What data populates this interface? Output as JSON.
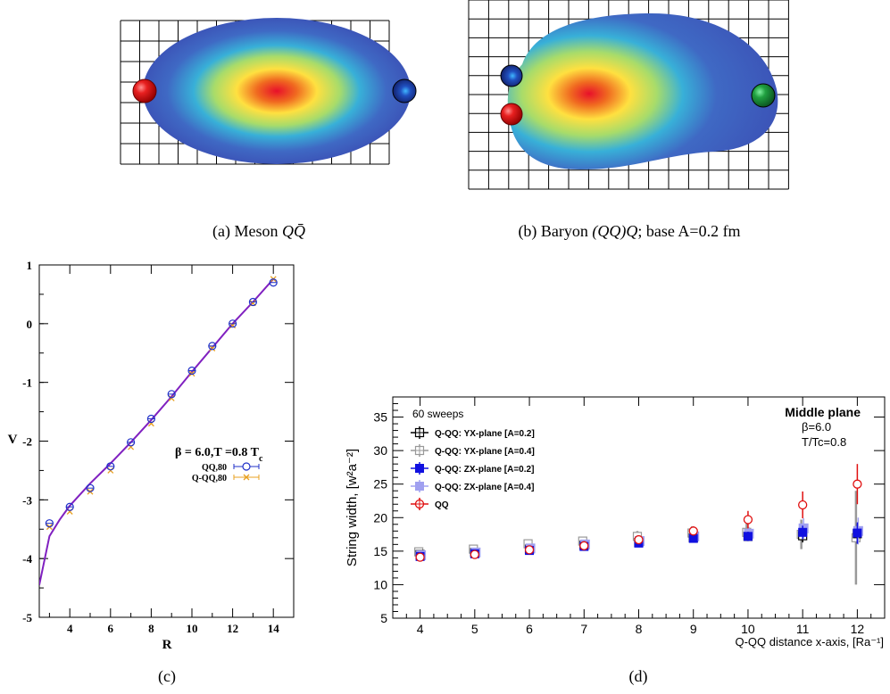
{
  "panels": {
    "a": {
      "caption_prefix": "(a)  Meson ",
      "caption_math": "QQ̄",
      "quarks": [
        {
          "color": "#e01010"
        },
        {
          "color": "#1a3fa0"
        }
      ]
    },
    "b": {
      "caption_prefix": "(b)  Baryon ",
      "caption_math": "(QQ)Q",
      "caption_suffix": "; base A=0.2 fm",
      "quarks": [
        {
          "color": "#1a3fa0"
        },
        {
          "color": "#e01010"
        },
        {
          "color": "#1a9040"
        }
      ]
    },
    "c": {
      "caption": "(c)"
    },
    "d": {
      "caption": "(d)"
    }
  },
  "chart_data": [
    {
      "type": "scatter",
      "panel": "c",
      "xlabel": "R",
      "ylabel": "V",
      "xlim": [
        2.5,
        15
      ],
      "ylim": [
        -5,
        1
      ],
      "x_ticks": [
        4,
        6,
        8,
        10,
        12,
        14
      ],
      "y_ticks": [
        1,
        0,
        -1,
        -2,
        -3,
        -4,
        -5
      ],
      "annotation": "β = 6.0,T =0.8 T",
      "annotation_sub": "c",
      "legend_position": "right-middle",
      "series": [
        {
          "name": "QQ,80",
          "marker": "circle",
          "color": "#2030c8",
          "x": [
            3,
            4,
            5,
            6,
            7,
            8,
            9,
            10,
            11,
            12,
            13,
            14
          ],
          "y": [
            -3.4,
            -3.12,
            -2.8,
            -2.43,
            -2.02,
            -1.62,
            -1.2,
            -0.8,
            -0.38,
            0.0,
            0.37,
            0.7
          ]
        },
        {
          "name": "Q-QQ,80",
          "marker": "cross",
          "color": "#e8a020",
          "x": [
            3,
            4,
            5,
            6,
            7,
            8,
            9,
            10,
            11,
            12,
            13,
            14
          ],
          "y": [
            -3.46,
            -3.2,
            -2.86,
            -2.5,
            -2.1,
            -1.7,
            -1.27,
            -0.85,
            -0.42,
            -0.03,
            0.35,
            0.76
          ]
        },
        {
          "name": "",
          "type": "line",
          "color": "#8020c0",
          "x": [
            2.5,
            3,
            3.5,
            4,
            5,
            6,
            7,
            8,
            9,
            10,
            11,
            12,
            13,
            14
          ],
          "y": [
            -4.45,
            -3.62,
            -3.34,
            -3.1,
            -2.72,
            -2.38,
            -2.02,
            -1.64,
            -1.24,
            -0.82,
            -0.41,
            0.0,
            0.37,
            0.76
          ]
        }
      ]
    },
    {
      "type": "scatter",
      "panel": "d",
      "xlabel": "Q-QQ distance x-axis, [Ra⁻¹]",
      "ylabel": "String width, [w²a⁻²]",
      "xlim": [
        3.5,
        12.5
      ],
      "ylim": [
        5,
        38
      ],
      "x_ticks": [
        4,
        5,
        6,
        7,
        8,
        9,
        10,
        11,
        12
      ],
      "y_ticks": [
        5,
        10,
        15,
        20,
        25,
        30,
        35
      ],
      "annotations": [
        "60 sweeps",
        "Middle plane",
        "β=6.0",
        "T/Tc=0.8"
      ],
      "legend_position": "top-left",
      "series": [
        {
          "name": "Q-QQ: YX-plane [A=0.2]",
          "marker": "open-square",
          "color": "#000000",
          "x": [
            4,
            5,
            6,
            7,
            8,
            9,
            10,
            11,
            12
          ],
          "y": [
            14.5,
            14.8,
            15.3,
            15.9,
            16.3,
            17.0,
            17.2,
            17.3,
            17.6
          ],
          "err": [
            0.3,
            0.3,
            0.4,
            0.4,
            0.5,
            0.6,
            0.7,
            1.0,
            1.5
          ]
        },
        {
          "name": "Q-QQ: YX-plane [A=0.4]",
          "marker": "open-square",
          "color": "#999999",
          "x": [
            4,
            5,
            6,
            7,
            8,
            9,
            10,
            11,
            12
          ],
          "y": [
            14.9,
            15.3,
            16.1,
            16.5,
            17.2,
            17.7,
            17.8,
            17.5,
            17.0
          ],
          "err": [
            0.3,
            0.4,
            0.5,
            0.6,
            0.8,
            1.0,
            1.3,
            2.2,
            7.0
          ]
        },
        {
          "name": "Q-QQ: ZX-plane [A=0.2]",
          "marker": "filled-square",
          "color": "#1010e0",
          "x": [
            4,
            5,
            6,
            7,
            8,
            9,
            10,
            11,
            12
          ],
          "y": [
            14.2,
            14.6,
            15.1,
            15.7,
            16.2,
            16.9,
            17.2,
            17.8,
            17.7
          ],
          "err": [
            0.2,
            0.3,
            0.3,
            0.4,
            0.5,
            0.6,
            0.7,
            1.0,
            1.6
          ]
        },
        {
          "name": "Q-QQ: ZX-plane [A=0.4]",
          "marker": "filled-square",
          "color": "#a0a0f0",
          "x": [
            4,
            5,
            6,
            7,
            8,
            9,
            10,
            11,
            12
          ],
          "y": [
            14.4,
            14.8,
            15.4,
            16.0,
            16.5,
            17.2,
            17.6,
            18.4,
            18.0
          ],
          "err": [
            0.3,
            0.3,
            0.4,
            0.5,
            0.6,
            0.8,
            1.0,
            1.5,
            2.0
          ]
        },
        {
          "name": "QQ",
          "marker": "open-circle",
          "color": "#e01010",
          "x": [
            4,
            5,
            6,
            7,
            8,
            9,
            10,
            11,
            12
          ],
          "y": [
            14.1,
            14.5,
            15.2,
            15.8,
            16.7,
            18.0,
            19.7,
            21.9,
            25.0
          ],
          "err": [
            0.3,
            0.3,
            0.4,
            0.5,
            0.6,
            0.7,
            1.3,
            2.0,
            3.0
          ]
        }
      ]
    }
  ]
}
